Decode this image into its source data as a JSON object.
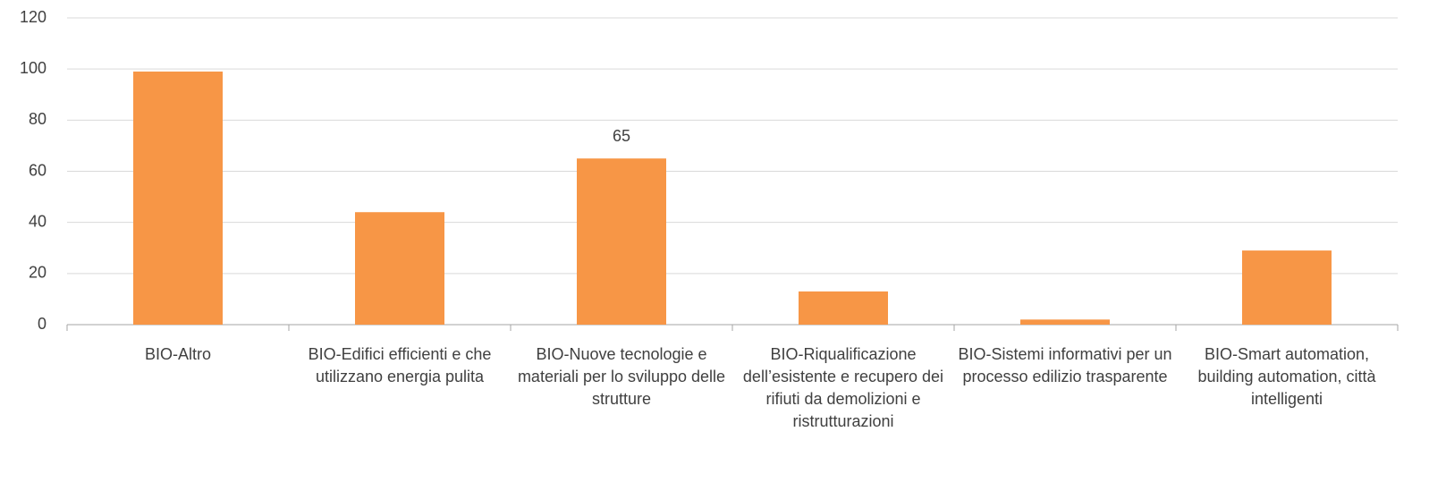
{
  "chart_data": {
    "type": "bar",
    "categories": [
      "BIO-Altro",
      "BIO-Edifici efficienti e che utilizzano energia pulita",
      "BIO-Nuove tecnologie e materiali per lo sviluppo delle strutture",
      "BIO-Riqualificazione dell’esistente e recupero dei rifiuti da demolizioni e ristrutturazioni",
      "BIO-Sistemi informativi per un processo edilizio trasparente",
      "BIO-Smart automation, building automation, città intelligenti"
    ],
    "values": [
      99,
      44,
      65,
      13,
      2,
      29
    ],
    "value_labels": [
      null,
      null,
      "65",
      null,
      null,
      null
    ],
    "color": "#f79646",
    "ylim": [
      0,
      120
    ],
    "yticks": [
      0,
      20,
      40,
      60,
      80,
      100,
      120
    ],
    "grid": true
  }
}
